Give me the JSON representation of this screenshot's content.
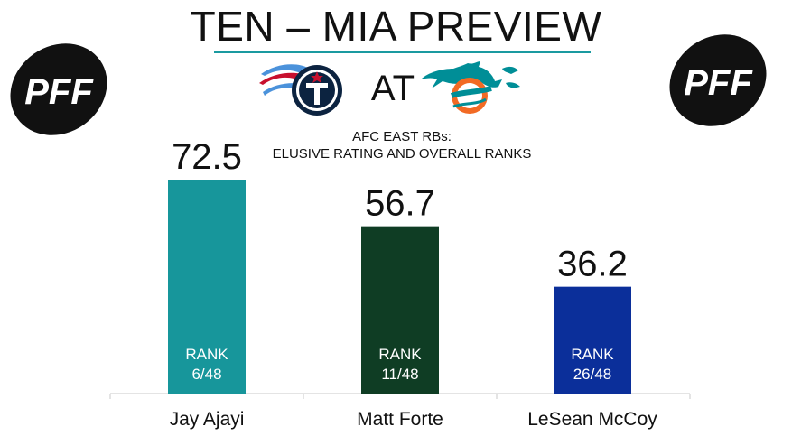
{
  "header": {
    "title": "TEN – MIA PREVIEW",
    "at_label": "AT",
    "logo_text": "PFF"
  },
  "chart_data": {
    "type": "bar",
    "title": "AFC EAST RBs:",
    "subtitle": "ELUSIVE RATING AND OVERALL RANKS",
    "categories": [
      "Jay Ajayi",
      "Matt Forte",
      "LeSean McCoy"
    ],
    "values": [
      72.5,
      56.7,
      36.2
    ],
    "value_labels": [
      "72.5",
      "56.7",
      "36.2"
    ],
    "rank_label": "RANK",
    "ranks": [
      "6/48",
      "11/48",
      "26/48"
    ],
    "colors": [
      "#17969b",
      "#0f3d24",
      "#0b2f9a"
    ],
    "ylim": [
      0,
      72.5
    ],
    "grid": false,
    "legend": "none"
  },
  "colors": {
    "accent": "#1a9aa0",
    "titans_navy": "#0c2340",
    "titans_blue": "#4b92db",
    "titans_red": "#c8102e",
    "dolphins_aqua": "#008e97",
    "dolphins_orange": "#f26a24"
  },
  "icons": [
    "pff-logo",
    "titans-logo",
    "dolphins-logo"
  ]
}
